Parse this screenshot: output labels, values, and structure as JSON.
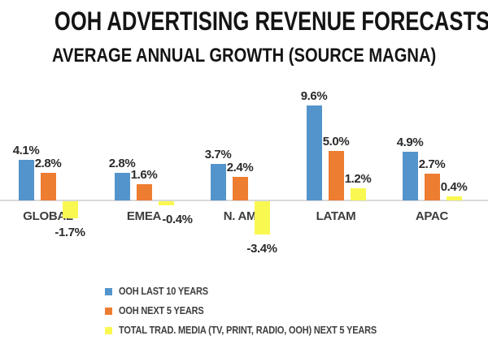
{
  "title": "OOH ADVERTISING REVENUE FORECASTS",
  "subtitle": "AVERAGE ANNUAL GROWTH (SOURCE MAGNA)",
  "colors": {
    "blue": "#5494CC",
    "orange": "#ED7D31",
    "yellow": "#F9F851",
    "axis": "#D9D9D9",
    "title_text": "#141414",
    "label_text": "#2B2B2B",
    "legend_text": "#3F3F3F"
  },
  "chart_data": {
    "type": "bar",
    "unit": "%",
    "categories": [
      "GLOBAL",
      "EMEA",
      "N. AM",
      "LATAM",
      "APAC"
    ],
    "series": [
      {
        "name": "OOH LAST 10 YEARS",
        "color_key": "blue",
        "values": [
          4.1,
          2.8,
          3.7,
          9.6,
          4.9
        ]
      },
      {
        "name": "OOH NEXT 5 YEARS",
        "color_key": "orange",
        "values": [
          2.8,
          1.6,
          2.4,
          5.0,
          2.7
        ]
      },
      {
        "name": "TOTAL TRAD. MEDIA (TV, PRINT, RADIO, OOH) NEXT 5 YEARS",
        "color_key": "yellow",
        "values": [
          -1.7,
          -0.4,
          -3.4,
          1.2,
          0.4
        ]
      }
    ],
    "ylim": [
      -3.4,
      9.6
    ],
    "grid": false,
    "value_labels_shown": true,
    "legend_position": "bottom-left",
    "baseline": 0
  }
}
